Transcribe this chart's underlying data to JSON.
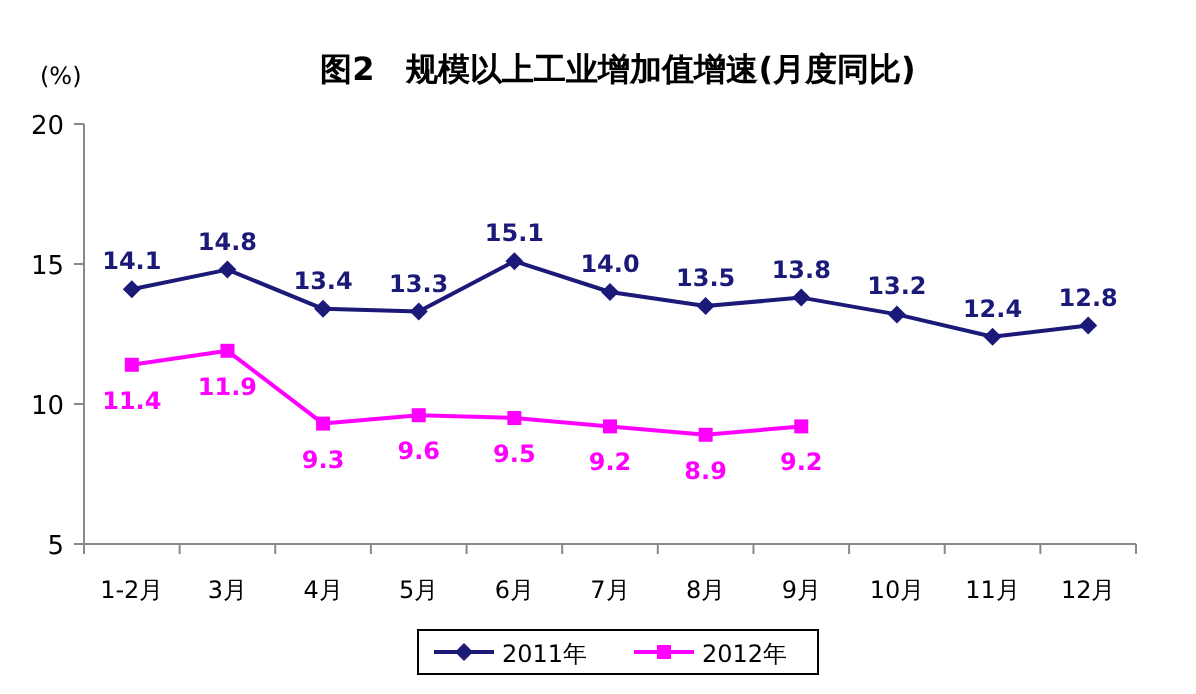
{
  "chart_data": {
    "type": "line",
    "title": "图2　规模以上工业增加值增速(月度同比)",
    "ylabel": "(%)",
    "categories": [
      "1-2月",
      "3月",
      "4月",
      "5月",
      "6月",
      "7月",
      "8月",
      "9月",
      "10月",
      "11月",
      "12月"
    ],
    "series": [
      {
        "name": "2011年",
        "color": "#1c1a78",
        "marker": "diamond",
        "values": [
          14.1,
          14.8,
          13.4,
          13.3,
          15.1,
          14.0,
          13.5,
          13.8,
          13.2,
          12.4,
          12.8
        ],
        "value_labels": [
          "14.1",
          "14.8",
          "13.4",
          "13.3",
          "15.1",
          "14.0",
          "13.5",
          "13.8",
          "13.2",
          "12.4",
          "12.8"
        ]
      },
      {
        "name": "2012年",
        "color": "#ff00ff",
        "marker": "square",
        "values": [
          11.4,
          11.9,
          9.3,
          9.6,
          9.5,
          9.2,
          8.9,
          9.2,
          null,
          null,
          null
        ],
        "value_labels": [
          "11.4",
          "11.9",
          "9.3",
          "9.6",
          "9.5",
          "9.2",
          "8.9",
          "9.2",
          null,
          null,
          null
        ]
      }
    ],
    "ylim": [
      5,
      20
    ],
    "yticks": [
      5,
      10,
      15,
      20
    ],
    "legend": "bottom"
  }
}
